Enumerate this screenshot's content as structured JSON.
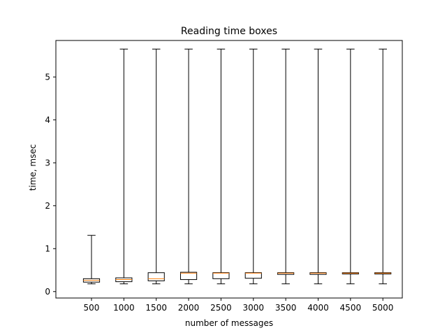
{
  "chart_data": {
    "type": "box",
    "title": "Reading time boxes",
    "xlabel": "number of messages",
    "ylabel": "time, msec",
    "ylim": [
      -0.15,
      5.85
    ],
    "yticks": [
      0,
      1,
      2,
      3,
      4,
      5
    ],
    "grid": false,
    "legend": "none",
    "categories": [
      "500",
      "1000",
      "1500",
      "2000",
      "2500",
      "3000",
      "3500",
      "4000",
      "4500",
      "5000"
    ],
    "boxes": [
      {
        "whisker_low": 0.18,
        "q1": 0.22,
        "median": 0.26,
        "q3": 0.3,
        "whisker_high": 1.31
      },
      {
        "whisker_low": 0.18,
        "q1": 0.23,
        "median": 0.28,
        "q3": 0.32,
        "whisker_high": 5.65
      },
      {
        "whisker_low": 0.18,
        "q1": 0.25,
        "median": 0.3,
        "q3": 0.44,
        "whisker_high": 5.65
      },
      {
        "whisker_low": 0.18,
        "q1": 0.28,
        "median": 0.43,
        "q3": 0.45,
        "whisker_high": 5.65
      },
      {
        "whisker_low": 0.18,
        "q1": 0.3,
        "median": 0.43,
        "q3": 0.44,
        "whisker_high": 5.65
      },
      {
        "whisker_low": 0.18,
        "q1": 0.31,
        "median": 0.43,
        "q3": 0.44,
        "whisker_high": 5.65
      },
      {
        "whisker_low": 0.18,
        "q1": 0.4,
        "median": 0.43,
        "q3": 0.44,
        "whisker_high": 5.65
      },
      {
        "whisker_low": 0.18,
        "q1": 0.4,
        "median": 0.43,
        "q3": 0.44,
        "whisker_high": 5.65
      },
      {
        "whisker_low": 0.18,
        "q1": 0.41,
        "median": 0.43,
        "q3": 0.44,
        "whisker_high": 5.65
      },
      {
        "whisker_low": 0.18,
        "q1": 0.41,
        "median": 0.43,
        "q3": 0.44,
        "whisker_high": 5.65
      }
    ],
    "colors": {
      "box": "#000000",
      "median": "#ff7f0e",
      "axis": "#000000"
    }
  }
}
